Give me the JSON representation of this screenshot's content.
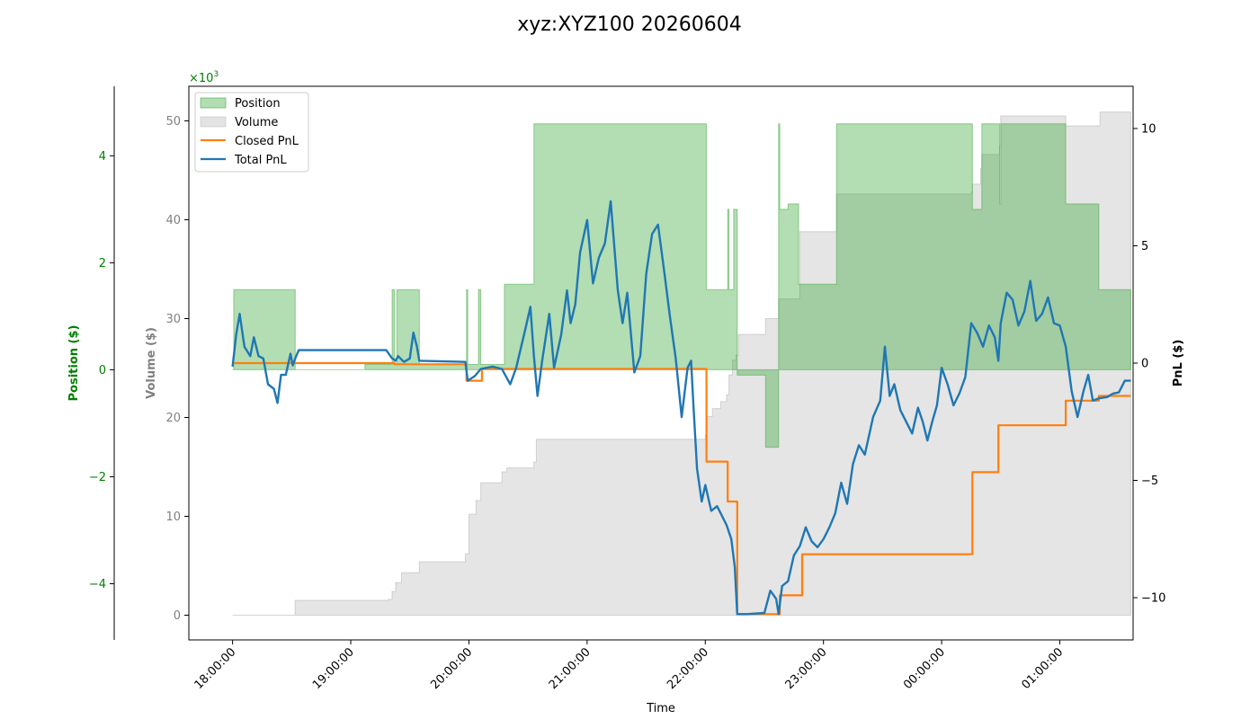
{
  "chart_data": {
    "type": "line",
    "title": "xyz:XYZ100 20260604",
    "xlabel": "Time",
    "x_ticks": [
      "18:00:00",
      "19:00:00",
      "20:00:00",
      "21:00:00",
      "22:00:00",
      "23:00:00",
      "00:00:00",
      "01:00:00"
    ],
    "x_range_hours": [
      -0.37,
      7.62
    ],
    "axes": {
      "position": {
        "label": "Position ($)",
        "color": "#008000",
        "range": [
          -5.05,
          5.3
        ],
        "ticks": [
          -4,
          -2,
          0,
          2,
          4
        ],
        "ticklabels": [
          "−4",
          "−2",
          "0",
          "2",
          "4"
        ],
        "multiplier": "×10",
        "multiplier_exp": "3"
      },
      "volume": {
        "label": "Volume ($)",
        "color": "#808080",
        "range": [
          -2.5,
          53.5
        ],
        "ticks": [
          0,
          10,
          20,
          30,
          40,
          50
        ],
        "ticklabels": [
          "0",
          "10",
          "20",
          "30",
          "40",
          "50"
        ]
      },
      "pnl": {
        "label": "PnL ($)",
        "color": "#000000",
        "range": [
          -11.8,
          11.8
        ],
        "ticks": [
          -10,
          -5,
          0,
          5,
          10
        ],
        "ticklabels": [
          "−10",
          "−5",
          "0",
          "5",
          "10"
        ]
      }
    },
    "legend": {
      "placement": "upper-left",
      "entries": [
        "Position",
        "Volume",
        "Closed PnL",
        "Total PnL"
      ]
    },
    "colors": {
      "position": "#2ca02c",
      "volume": "#cccccc",
      "closed_pnl": "#ff7f0e",
      "total_pnl": "#1f77b4"
    },
    "series": [
      {
        "name": "Position",
        "axis": "position",
        "kind": "step-area",
        "points": [
          [
            0,
            0
          ],
          [
            0.01,
            1.5
          ],
          [
            0.52,
            1.5
          ],
          [
            0.53,
            0
          ],
          [
            1.1,
            0
          ],
          [
            1.12,
            0.1
          ],
          [
            1.34,
            0.1
          ],
          [
            1.35,
            1.5
          ],
          [
            1.37,
            0.1
          ],
          [
            1.39,
            1.5
          ],
          [
            1.57,
            1.5
          ],
          [
            1.58,
            0.1
          ],
          [
            1.97,
            0.1
          ],
          [
            1.98,
            1.5
          ],
          [
            1.99,
            0.1
          ],
          [
            2.07,
            0.1
          ],
          [
            2.08,
            1.5
          ],
          [
            2.1,
            0.1
          ],
          [
            2.28,
            0.1
          ],
          [
            2.3,
            1.6
          ],
          [
            2.53,
            1.6
          ],
          [
            2.55,
            4.6
          ],
          [
            3.6,
            4.6
          ],
          [
            3.61,
            4.6
          ],
          [
            4.0,
            4.6
          ],
          [
            4.01,
            1.5
          ],
          [
            4.18,
            1.5
          ],
          [
            4.19,
            3.0
          ],
          [
            4.2,
            1.5
          ],
          [
            4.23,
            1.5
          ],
          [
            4.24,
            3.0
          ],
          [
            4.26,
            3.0
          ],
          [
            4.27,
            -0.1
          ],
          [
            4.5,
            -0.1
          ],
          [
            4.51,
            -1.45
          ],
          [
            4.61,
            -1.45
          ],
          [
            4.62,
            4.6
          ],
          [
            4.63,
            3.0
          ],
          [
            4.68,
            3.0
          ],
          [
            4.7,
            3.1
          ],
          [
            4.78,
            3.1
          ],
          [
            4.79,
            1.6
          ],
          [
            5.1,
            1.6
          ],
          [
            5.11,
            4.6
          ],
          [
            6.25,
            4.6
          ],
          [
            6.26,
            3.0
          ],
          [
            6.33,
            3.0
          ],
          [
            6.34,
            4.6
          ],
          [
            6.48,
            4.6
          ],
          [
            6.49,
            3.1
          ],
          [
            6.5,
            4.6
          ],
          [
            7.04,
            4.6
          ],
          [
            7.05,
            3.1
          ],
          [
            7.32,
            3.1
          ],
          [
            7.33,
            1.5
          ],
          [
            7.6,
            1.5
          ]
        ]
      },
      {
        "name": "Volume",
        "axis": "volume",
        "kind": "step-area",
        "points": [
          [
            0,
            0
          ],
          [
            0.52,
            0
          ],
          [
            0.53,
            1.5
          ],
          [
            1.1,
            1.5
          ],
          [
            1.32,
            1.6
          ],
          [
            1.35,
            2.4
          ],
          [
            1.38,
            3.3
          ],
          [
            1.43,
            4.3
          ],
          [
            1.58,
            5.4
          ],
          [
            1.97,
            6.2
          ],
          [
            2.0,
            10.2
          ],
          [
            2.06,
            11.6
          ],
          [
            2.1,
            13.4
          ],
          [
            2.28,
            14.5
          ],
          [
            2.32,
            14.9
          ],
          [
            2.55,
            15.5
          ],
          [
            2.57,
            17.8
          ],
          [
            3.61,
            17.8
          ],
          [
            4.0,
            18.2
          ],
          [
            4.01,
            20.1
          ],
          [
            4.06,
            20.9
          ],
          [
            4.13,
            21.6
          ],
          [
            4.18,
            22.3
          ],
          [
            4.2,
            24.3
          ],
          [
            4.23,
            25.8
          ],
          [
            4.26,
            26.3
          ],
          [
            4.28,
            28.4
          ],
          [
            4.5,
            28.4
          ],
          [
            4.51,
            30.0
          ],
          [
            4.6,
            30.0
          ],
          [
            4.62,
            32.0
          ],
          [
            4.8,
            38.8
          ],
          [
            5.1,
            38.8
          ],
          [
            5.11,
            42.6
          ],
          [
            6.0,
            42.6
          ],
          [
            6.25,
            42.8
          ],
          [
            6.26,
            43.6
          ],
          [
            6.33,
            45.2
          ],
          [
            6.34,
            46.6
          ],
          [
            6.49,
            47.5
          ],
          [
            6.5,
            50.5
          ],
          [
            7.05,
            50.5
          ],
          [
            7.05,
            49.5
          ],
          [
            7.33,
            49.5
          ],
          [
            7.34,
            50.9
          ],
          [
            7.6,
            50.9
          ]
        ]
      },
      {
        "name": "Closed PnL",
        "axis": "pnl",
        "kind": "step-line",
        "points": [
          [
            0,
            0
          ],
          [
            1.35,
            0
          ],
          [
            1.37,
            -0.05
          ],
          [
            1.97,
            -0.05
          ],
          [
            1.98,
            -0.75
          ],
          [
            2.1,
            -0.75
          ],
          [
            2.11,
            -0.25
          ],
          [
            4.0,
            -0.25
          ],
          [
            4.01,
            -4.2
          ],
          [
            4.18,
            -4.2
          ],
          [
            4.19,
            -5.9
          ],
          [
            4.25,
            -5.9
          ],
          [
            4.27,
            -10.7
          ],
          [
            4.62,
            -10.7
          ],
          [
            4.63,
            -9.9
          ],
          [
            4.81,
            -9.9
          ],
          [
            4.82,
            -8.15
          ],
          [
            6.25,
            -8.15
          ],
          [
            6.26,
            -4.65
          ],
          [
            6.47,
            -4.65
          ],
          [
            6.48,
            -2.65
          ],
          [
            7.04,
            -2.65
          ],
          [
            7.05,
            -1.6
          ],
          [
            7.32,
            -1.6
          ],
          [
            7.33,
            -1.4
          ],
          [
            7.6,
            -1.4
          ]
        ]
      },
      {
        "name": "Total PnL",
        "axis": "pnl",
        "kind": "line",
        "points": [
          [
            0,
            -0.15
          ],
          [
            0.03,
            1.2
          ],
          [
            0.06,
            2.1
          ],
          [
            0.1,
            0.7
          ],
          [
            0.15,
            0.3
          ],
          [
            0.18,
            1.1
          ],
          [
            0.22,
            0.3
          ],
          [
            0.26,
            0.2
          ],
          [
            0.3,
            -0.9
          ],
          [
            0.35,
            -1.1
          ],
          [
            0.38,
            -1.7
          ],
          [
            0.41,
            -0.5
          ],
          [
            0.45,
            -0.5
          ],
          [
            0.49,
            0.4
          ],
          [
            0.51,
            -0.1
          ],
          [
            0.53,
            0.2
          ],
          [
            0.56,
            0.55
          ],
          [
            1.1,
            0.55
          ],
          [
            1.3,
            0.55
          ],
          [
            1.35,
            0.2
          ],
          [
            1.38,
            0.1
          ],
          [
            1.4,
            0.3
          ],
          [
            1.45,
            0.05
          ],
          [
            1.5,
            0.2
          ],
          [
            1.53,
            1.3
          ],
          [
            1.56,
            0.7
          ],
          [
            1.58,
            0.1
          ],
          [
            1.97,
            0.05
          ],
          [
            1.99,
            -0.75
          ],
          [
            2.05,
            -0.55
          ],
          [
            2.1,
            -0.25
          ],
          [
            2.2,
            -0.15
          ],
          [
            2.28,
            -0.25
          ],
          [
            2.3,
            -0.45
          ],
          [
            2.35,
            -0.9
          ],
          [
            2.4,
            -0.2
          ],
          [
            2.48,
            1.5
          ],
          [
            2.52,
            2.4
          ],
          [
            2.55,
            0.3
          ],
          [
            2.58,
            -1.4
          ],
          [
            2.62,
            0.1
          ],
          [
            2.68,
            2.1
          ],
          [
            2.72,
            -0.2
          ],
          [
            2.78,
            1.2
          ],
          [
            2.83,
            3.1
          ],
          [
            2.86,
            1.7
          ],
          [
            2.9,
            2.5
          ],
          [
            2.94,
            4.7
          ],
          [
            3.0,
            6.1
          ],
          [
            3.05,
            3.4
          ],
          [
            3.1,
            4.5
          ],
          [
            3.15,
            5.1
          ],
          [
            3.2,
            6.9
          ],
          [
            3.26,
            3.1
          ],
          [
            3.3,
            1.7
          ],
          [
            3.34,
            3.0
          ],
          [
            3.4,
            -0.4
          ],
          [
            3.45,
            0.3
          ],
          [
            3.5,
            3.8
          ],
          [
            3.55,
            5.5
          ],
          [
            3.6,
            5.9
          ],
          [
            3.65,
            4.0
          ],
          [
            3.7,
            2.0
          ],
          [
            3.75,
            0.2
          ],
          [
            3.8,
            -2.3
          ],
          [
            3.85,
            -0.2
          ],
          [
            3.88,
            0.1
          ],
          [
            3.9,
            -1.8
          ],
          [
            3.93,
            -4.5
          ],
          [
            3.97,
            -5.9
          ],
          [
            4.0,
            -5.2
          ],
          [
            4.05,
            -6.3
          ],
          [
            4.1,
            -6.1
          ],
          [
            4.15,
            -6.6
          ],
          [
            4.18,
            -6.9
          ],
          [
            4.22,
            -7.5
          ],
          [
            4.25,
            -8.7
          ],
          [
            4.27,
            -10.7
          ],
          [
            4.35,
            -10.7
          ],
          [
            4.5,
            -10.65
          ],
          [
            4.55,
            -9.7
          ],
          [
            4.6,
            -10.05
          ],
          [
            4.62,
            -10.7
          ],
          [
            4.65,
            -9.5
          ],
          [
            4.7,
            -9.3
          ],
          [
            4.75,
            -8.2
          ],
          [
            4.8,
            -7.8
          ],
          [
            4.85,
            -7.0
          ],
          [
            4.9,
            -7.6
          ],
          [
            4.95,
            -7.85
          ],
          [
            5.0,
            -7.5
          ],
          [
            5.05,
            -7.0
          ],
          [
            5.1,
            -6.4
          ],
          [
            5.15,
            -5.1
          ],
          [
            5.2,
            -6.0
          ],
          [
            5.25,
            -4.3
          ],
          [
            5.3,
            -3.5
          ],
          [
            5.35,
            -3.9
          ],
          [
            5.42,
            -2.3
          ],
          [
            5.48,
            -1.6
          ],
          [
            5.52,
            0.7
          ],
          [
            5.56,
            -1.4
          ],
          [
            5.6,
            -0.9
          ],
          [
            5.65,
            -2.0
          ],
          [
            5.7,
            -2.5
          ],
          [
            5.75,
            -3.0
          ],
          [
            5.8,
            -1.9
          ],
          [
            5.84,
            -2.5
          ],
          [
            5.88,
            -3.3
          ],
          [
            5.92,
            -2.5
          ],
          [
            5.96,
            -1.8
          ],
          [
            6.0,
            -0.2
          ],
          [
            6.05,
            -0.9
          ],
          [
            6.1,
            -1.8
          ],
          [
            6.15,
            -1.3
          ],
          [
            6.2,
            -0.6
          ],
          [
            6.25,
            1.7
          ],
          [
            6.3,
            1.3
          ],
          [
            6.35,
            0.7
          ],
          [
            6.4,
            1.6
          ],
          [
            6.45,
            1.1
          ],
          [
            6.48,
            0.1
          ],
          [
            6.5,
            1.7
          ],
          [
            6.55,
            3.0
          ],
          [
            6.6,
            2.7
          ],
          [
            6.65,
            1.6
          ],
          [
            6.7,
            2.2
          ],
          [
            6.75,
            3.5
          ],
          [
            6.8,
            1.8
          ],
          [
            6.85,
            2.1
          ],
          [
            6.9,
            2.8
          ],
          [
            6.95,
            1.7
          ],
          [
            7.0,
            1.6
          ],
          [
            7.05,
            0.7
          ],
          [
            7.1,
            -1.2
          ],
          [
            7.15,
            -2.3
          ],
          [
            7.2,
            -1.2
          ],
          [
            7.24,
            -0.5
          ],
          [
            7.28,
            -1.6
          ],
          [
            7.33,
            -1.5
          ],
          [
            7.4,
            -1.45
          ],
          [
            7.45,
            -1.3
          ],
          [
            7.5,
            -1.25
          ],
          [
            7.55,
            -0.75
          ],
          [
            7.6,
            -0.75
          ]
        ]
      }
    ]
  }
}
